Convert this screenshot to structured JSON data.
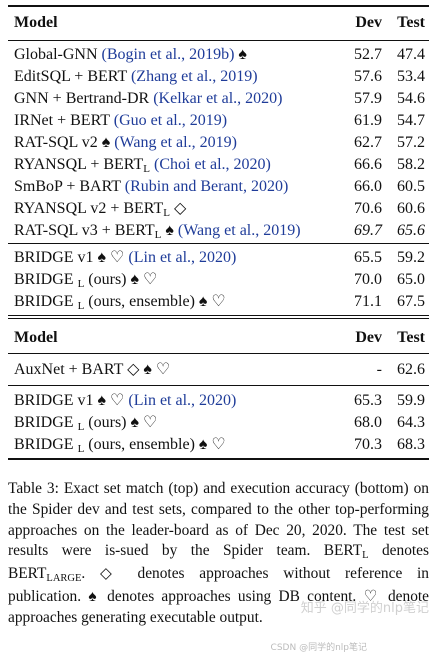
{
  "header1": {
    "model": "Model",
    "dev": "Dev",
    "test": "Test"
  },
  "group1": [
    {
      "model": "Global-GNN ",
      "cite": "(Bogin et al., 2019b)",
      "sym": " ♠",
      "dev": "52.7",
      "test": "47.4"
    },
    {
      "model": "EditSQL + BERT ",
      "cite": "(Zhang et al., 2019)",
      "sym": "",
      "dev": "57.6",
      "test": "53.4"
    },
    {
      "model": "GNN + Bertrand-DR ",
      "cite": "(Kelkar et al., 2020)",
      "sym": "",
      "dev": "57.9",
      "test": "54.6"
    },
    {
      "model": "IRNet + BERT ",
      "cite": "(Guo et al., 2019)",
      "sym": "",
      "dev": "61.9",
      "test": "54.7"
    },
    {
      "model": "RAT-SQL v2 ♠ ",
      "cite": "(Wang et al., 2019)",
      "sym": "",
      "dev": "62.7",
      "test": "57.2"
    },
    {
      "model": "RYANSQL + BERT",
      "sub": "L",
      "model2": " ",
      "cite": "(Choi et al., 2020)",
      "sym": "",
      "dev": "66.6",
      "test": "58.2"
    },
    {
      "model": "SmBoP + BART ",
      "cite": "(Rubin and Berant, 2020)",
      "sym": "",
      "dev": "66.0",
      "test": "60.5"
    },
    {
      "model": "RYANSQL v2 + BERT",
      "sub": "L",
      "model2": " ◇",
      "cite": "",
      "sym": "",
      "dev": "70.6",
      "test": "60.6"
    },
    {
      "model": "RAT-SQL v3 + BERT",
      "sub": "L",
      "model2": " ♠ ",
      "cite": "(Wang et al., 2019)",
      "sym": "",
      "dev": "69.7",
      "test": "65.6",
      "italic": true
    }
  ],
  "group2": [
    {
      "model": "BRIDGE v1 ♠ ♡ ",
      "cite": "(Lin et al., 2020)",
      "dev": "65.5",
      "test": "59.2"
    },
    {
      "model": "BRIDGE ",
      "sub": "L",
      "model2": " (ours) ♠ ♡",
      "cite": "",
      "dev": "70.0",
      "test": "65.0"
    },
    {
      "model": "BRIDGE ",
      "sub": "L",
      "model2": " (ours, ensemble) ♠ ♡",
      "cite": "",
      "dev": "71.1",
      "test": "67.5"
    }
  ],
  "header2": {
    "model": "Model",
    "dev": "Dev",
    "test": "Test"
  },
  "group3": [
    {
      "model": "AuxNet + BART ◇ ♠ ♡",
      "cite": "",
      "dev": "-",
      "test": "62.6"
    }
  ],
  "group4": [
    {
      "model": "BRIDGE v1 ♠ ♡ ",
      "cite": "(Lin et al., 2020)",
      "dev": "65.3",
      "test": "59.9"
    },
    {
      "model": "BRIDGE ",
      "sub": "L",
      "model2": " (ours) ♠ ♡",
      "cite": "",
      "dev": "68.0",
      "test": "64.3"
    },
    {
      "model": "BRIDGE ",
      "sub": "L",
      "model2": " (ours, ensemble) ♠ ♡",
      "cite": "",
      "dev": "70.3",
      "test": "68.3"
    }
  ],
  "caption": {
    "p1": "Table 3: Exact set match (top) and execution accuracy (bottom) on the Spider dev and test sets, compared to the other top-performing approaches on the leader-board as of Dec 20, 2020. The test set results were is-sued by the Spider team. BERT",
    "s1": "L",
    "p2": " denotes BERT",
    "s2": "LARGE",
    "p3": ". ◇ denotes approaches without reference in publication. ♠ denotes approaches using DB content. ♡ denote approaches generating executable output."
  },
  "watermark": {
    "line1": "知乎 @同学的nlp笔记",
    "line2": "CSDN @同学的nlp笔记"
  }
}
